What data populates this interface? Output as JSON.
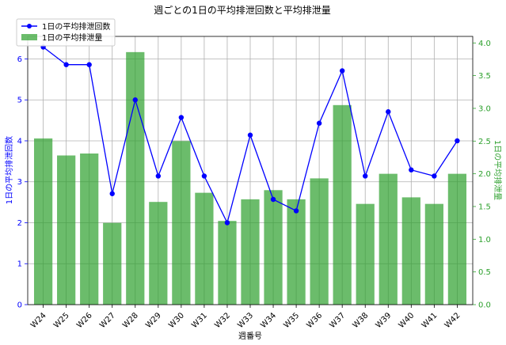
{
  "chart_data": {
    "type": "bar+line",
    "title": "週ごとの1日の平均排泄回数と平均排泄量",
    "xlabel": "週番号",
    "categories": [
      "W24",
      "W25",
      "W26",
      "W27",
      "W28",
      "W29",
      "W30",
      "W31",
      "W32",
      "W33",
      "W34",
      "W35",
      "W36",
      "W37",
      "W38",
      "W39",
      "W40",
      "W41",
      "W42"
    ],
    "series": [
      {
        "name": "1日の平均排泄回数",
        "type": "line",
        "axis": "left",
        "color": "#0000ff",
        "values": [
          6.29,
          5.86,
          5.86,
          2.71,
          5.0,
          3.14,
          4.57,
          3.14,
          2.0,
          4.14,
          2.57,
          2.29,
          4.43,
          5.71,
          3.14,
          4.71,
          3.29,
          3.14,
          4.0
        ]
      },
      {
        "name": "1日の平均排泄量",
        "type": "bar",
        "axis": "right",
        "color": "#2ca02c",
        "values": [
          2.54,
          2.28,
          2.31,
          1.25,
          3.86,
          1.57,
          2.5,
          1.71,
          1.28,
          1.61,
          1.75,
          1.61,
          1.93,
          3.05,
          1.54,
          2.0,
          1.64,
          1.54,
          2.0
        ]
      }
    ],
    "ylabel_left": "1日の平均排泄回数",
    "ylabel_right": "1日の平均排泄量",
    "ylim_left": [
      0,
      6.55
    ],
    "ylim_right": [
      0,
      4.1
    ],
    "yticks_left": [
      "0",
      "1",
      "2",
      "3",
      "4",
      "5",
      "6"
    ],
    "yticks_right": [
      "0.0",
      "0.5",
      "1.0",
      "1.5",
      "2.0",
      "2.5",
      "3.0",
      "3.5",
      "4.0"
    ],
    "grid": true,
    "legend_position": "top-left"
  }
}
